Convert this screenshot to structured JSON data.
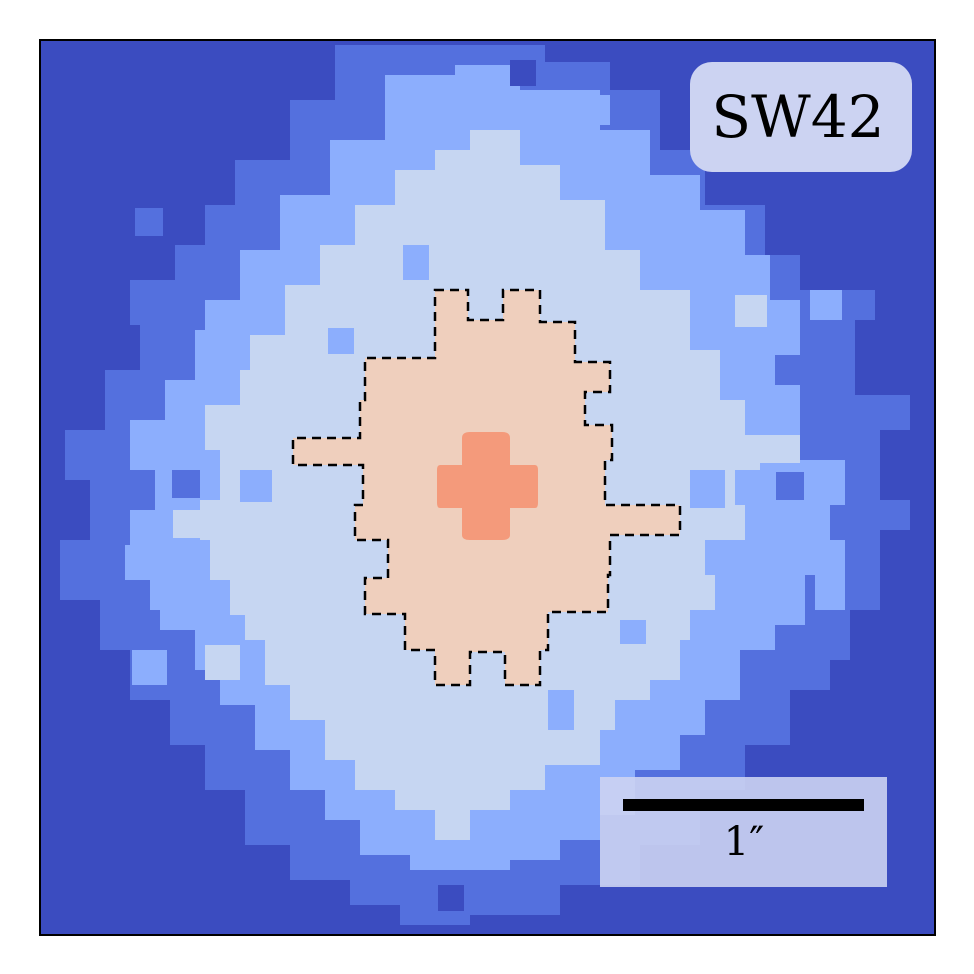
{
  "image": {
    "object_label": "SW42",
    "scale_bar_label": "1″"
  },
  "colors": {
    "background_level": "#3b4cc0",
    "level_1": "#5470de",
    "level_2": "#8caefd",
    "level_3": "#c6d6f2",
    "level_4": "#efcfbd",
    "level_5": "#f49a7b",
    "contour_line": "#000000",
    "frame": "#000000",
    "label_box": "#ccd3f2"
  }
}
